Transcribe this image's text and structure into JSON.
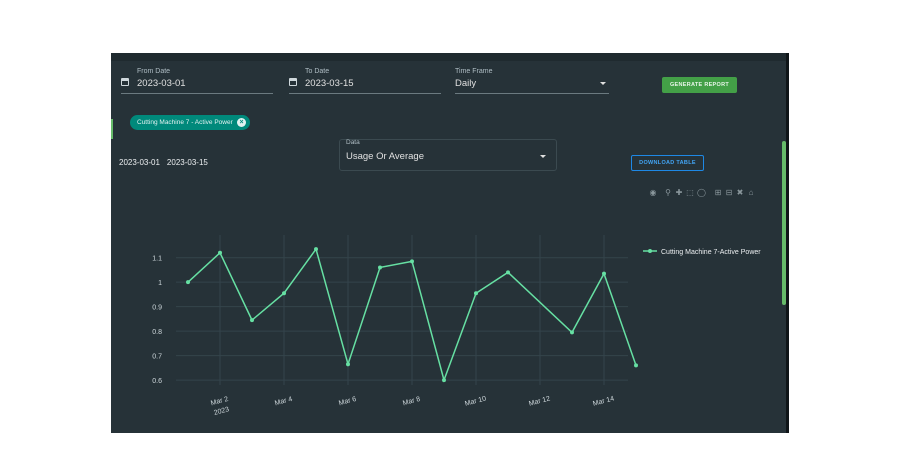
{
  "filters": {
    "from_date": {
      "label": "From Date",
      "value": "2023-03-01",
      "icon": "calendar-icon"
    },
    "to_date": {
      "label": "To Date",
      "value": "2023-03-15",
      "icon": "calendar-icon"
    },
    "time_frame": {
      "label": "Time Frame",
      "value": "Daily"
    },
    "generate_label": "GENERATE REPORT"
  },
  "chip": {
    "label": "Cutting Machine 7 - Active Power",
    "remove_icon": "close-circle-icon"
  },
  "data_select": {
    "label": "Data",
    "value": "Usage Or Average"
  },
  "date_range": {
    "start": "2023-03-01",
    "end": "2023-03-15"
  },
  "download_label": "DOWNLOAD TABLE",
  "modebar": [
    "camera-icon",
    "zoom-icon",
    "pan-icon",
    "box-select-icon",
    "lasso-icon",
    "zoom-in-icon",
    "zoom-out-icon",
    "autoscale-icon",
    "home-icon"
  ],
  "colors": {
    "line": "#66e0a3",
    "button": "#43a047",
    "chip": "#00897b",
    "accent": "#1e88e5"
  },
  "chart_data": {
    "type": "line",
    "x": [
      "2023-03-01",
      "2023-03-02",
      "2023-03-03",
      "2023-03-04",
      "2023-03-05",
      "2023-03-06",
      "2023-03-07",
      "2023-03-08",
      "2023-03-09",
      "2023-03-10",
      "2023-03-11",
      "2023-03-13",
      "2023-03-14",
      "2023-03-15"
    ],
    "series": [
      {
        "name": "Cutting Machine 7-Active Power",
        "values": [
          1.0,
          1.12,
          0.845,
          0.955,
          1.135,
          0.665,
          1.06,
          1.085,
          0.6,
          0.955,
          1.04,
          0.795,
          1.035,
          0.66
        ]
      }
    ],
    "ylim": [
      0.58,
      1.16
    ],
    "yticks": [
      0.6,
      0.7,
      0.8,
      0.9,
      1,
      1.1
    ],
    "ytick_labels": [
      "0.6",
      "0.7",
      "0.8",
      "0.9",
      "1",
      "1.1"
    ],
    "xtick_dates": [
      "2023-03-02",
      "2023-03-04",
      "2023-03-06",
      "2023-03-08",
      "2023-03-10",
      "2023-03-12",
      "2023-03-14"
    ],
    "xtick_labels": [
      "Mar 2",
      "Mar 4",
      "Mar 6",
      "Mar 8",
      "Mar 10",
      "Mar 12",
      "Mar 14"
    ],
    "xtick_sublabel": "2023",
    "legend": "top-right",
    "grid": true
  }
}
